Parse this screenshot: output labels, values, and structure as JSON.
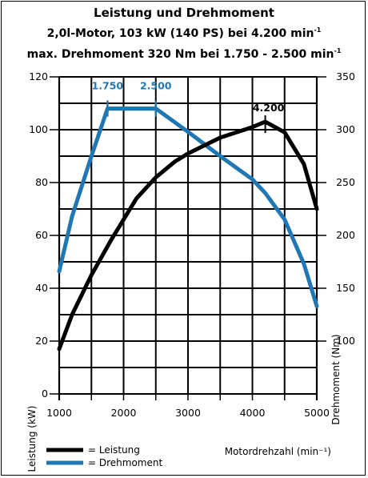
{
  "header": {
    "title": "Leistung und Drehmoment",
    "subtitle1_main": "2,0l-Motor, 103 kW (140 PS) bei 4.200 min",
    "subtitle1_sup": "-1",
    "subtitle2_main": "max. Drehmoment 320 Nm bei 1.750 - 2.500 min",
    "subtitle2_sup": "-1"
  },
  "chart_data": {
    "type": "line",
    "title": "Leistung und Drehmoment",
    "xlabel": "Motordrehzahl (min⁻¹)",
    "ylabel_left": "Leistung (kW)",
    "ylabel_right": "Drehmoment (Nm)",
    "xlim": [
      1000,
      5000
    ],
    "ylim_left": [
      0,
      120
    ],
    "ylim_right": [
      50,
      350
    ],
    "x_ticks": [
      1000,
      2000,
      3000,
      4000,
      5000
    ],
    "y_left_ticks": [
      0,
      20,
      40,
      60,
      80,
      100,
      120
    ],
    "y_right_ticks": [
      100,
      150,
      200,
      250,
      300,
      350
    ],
    "grid": true,
    "legend_position": "bottom-left",
    "series": [
      {
        "name": "Leistung",
        "axis": "left",
        "color": "#000000",
        "x": [
          1000,
          1200,
          1500,
          1800,
          2000,
          2200,
          2500,
          2800,
          3000,
          3500,
          4000,
          4200,
          4500,
          4800,
          5000
        ],
        "y": [
          17,
          30,
          45,
          58,
          66,
          74,
          82,
          88,
          91,
          97,
          101,
          103,
          99,
          87,
          70
        ]
      },
      {
        "name": "Drehmoment",
        "axis": "right",
        "color": "#1f77b4",
        "x": [
          1000,
          1200,
          1500,
          1750,
          2500,
          3000,
          3500,
          4000,
          4200,
          4500,
          4800,
          5000
        ],
        "y": [
          166,
          218,
          275,
          320,
          320,
          298,
          275,
          253,
          240,
          215,
          173,
          133
        ]
      }
    ],
    "annotations": [
      {
        "text": "1.750",
        "x": 1750,
        "color": "#1f77b4"
      },
      {
        "text": "2.500",
        "x": 2500,
        "color": "#1f77b4"
      },
      {
        "text": "4.200",
        "x": 4200,
        "color": "#000000"
      }
    ]
  },
  "legend": {
    "leistung_label": "= Leistung",
    "drehmoment_label": "= Drehmoment"
  }
}
